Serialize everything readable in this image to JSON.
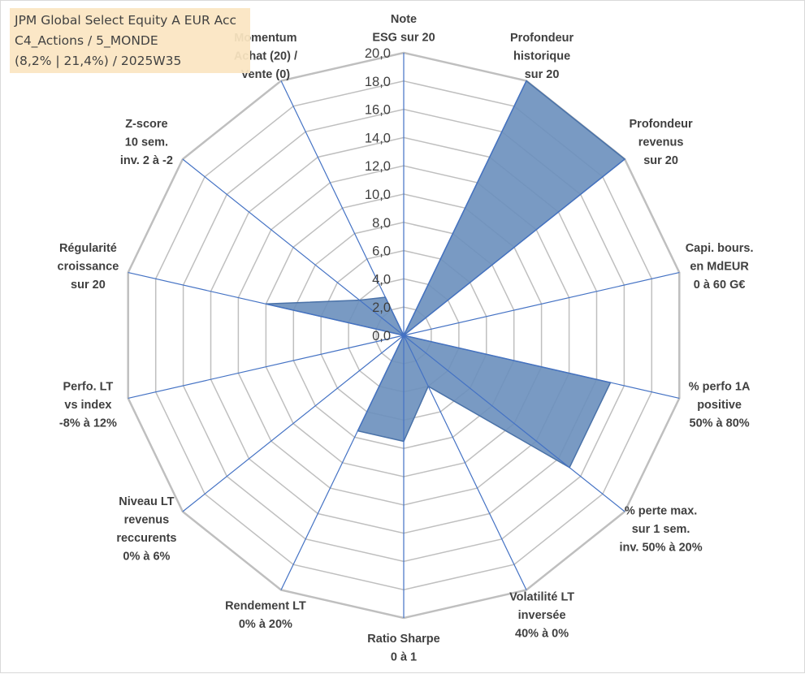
{
  "info_box": {
    "line1": "JPM Global Select Equity A EUR Acc",
    "line2": "C4_Actions / 5_MONDE",
    "line3": "(8,2% | 21,4%) / 2025W35"
  },
  "colors": {
    "series_fill": "#6a8fbd",
    "series_stroke": "#4a72a8",
    "grid": "#bfbfbf",
    "spoke": "#4472c4",
    "info_box_bg": "#fbe6c2"
  },
  "chart_data": {
    "type": "radar",
    "rmin": 0,
    "rmax": 20,
    "tick_step": 2,
    "tick_labels": [
      "0,0",
      "2,0",
      "4,0",
      "6,0",
      "8,0",
      "10,0",
      "12,0",
      "14,0",
      "16,0",
      "18,0",
      "20,0"
    ],
    "grid": true,
    "legend": "none",
    "axes": [
      {
        "label": [
          "Note",
          "ESG sur 20"
        ],
        "value": 0
      },
      {
        "label": [
          "Profondeur",
          "historique",
          "sur 20"
        ],
        "value": 20
      },
      {
        "label": [
          "Profondeur",
          "revenus",
          "sur 20"
        ],
        "value": 20
      },
      {
        "label": [
          "Capi. bours.",
          "en MdEUR",
          "0 à 60 G€"
        ],
        "value": 0
      },
      {
        "label": [
          "% perfo 1A",
          "positive",
          "50% à 80%"
        ],
        "value": 15
      },
      {
        "label": [
          "% perte max.",
          "sur 1 sem.",
          "inv. 50% à 20%"
        ],
        "value": 15
      },
      {
        "label": [
          "Volatilité LT",
          "inversée",
          "40% à 0%"
        ],
        "value": 4
      },
      {
        "label": [
          "Ratio Sharpe",
          "0 à 1"
        ],
        "value": 7.5
      },
      {
        "label": [
          "Rendement LT",
          "0% à 20%"
        ],
        "value": 7.5
      },
      {
        "label": [
          "Niveau LT",
          "revenus",
          "reccurents",
          "0% à 6%"
        ],
        "value": 0
      },
      {
        "label": [
          "Perfo. LT",
          "vs index",
          "-8% à 12%"
        ],
        "value": 0
      },
      {
        "label": [
          "Régularité",
          "croissance",
          "sur 20"
        ],
        "value": 10
      },
      {
        "label": [
          "Z-score",
          "10 sem.",
          "inv. 2 à -2"
        ],
        "value": 4
      },
      {
        "label": [
          "Momentum",
          "Achat (20) /",
          "Vente (0)"
        ],
        "value": 3
      }
    ]
  }
}
